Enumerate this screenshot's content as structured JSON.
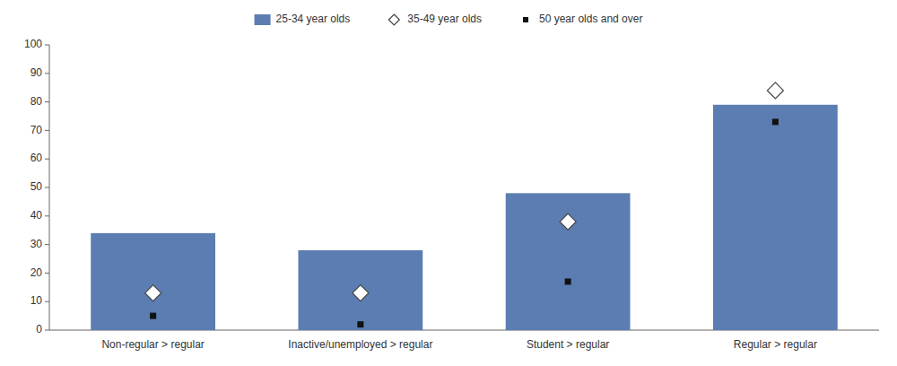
{
  "chart_data": {
    "type": "bar",
    "categories": [
      "Non-regular > regular",
      "Inactive/unemployed > regular",
      "Student > regular",
      "Regular > regular"
    ],
    "series": [
      {
        "name": "25-34 year olds",
        "type": "bar",
        "color": "#5B7DB1",
        "values": [
          34,
          28,
          48,
          79
        ]
      },
      {
        "name": "35-49 year olds",
        "type": "scatter",
        "marker": "diamond",
        "color": "white",
        "values": [
          13,
          13,
          38,
          84
        ]
      },
      {
        "name": "50 year olds and over",
        "type": "scatter",
        "marker": "square",
        "color": "#111111",
        "values": [
          5,
          2,
          17,
          73
        ]
      }
    ],
    "ylim": [
      0,
      100
    ],
    "yticks": [
      0,
      10,
      20,
      30,
      40,
      50,
      60,
      70,
      80,
      90,
      100
    ],
    "grid": false,
    "legend": "top"
  }
}
